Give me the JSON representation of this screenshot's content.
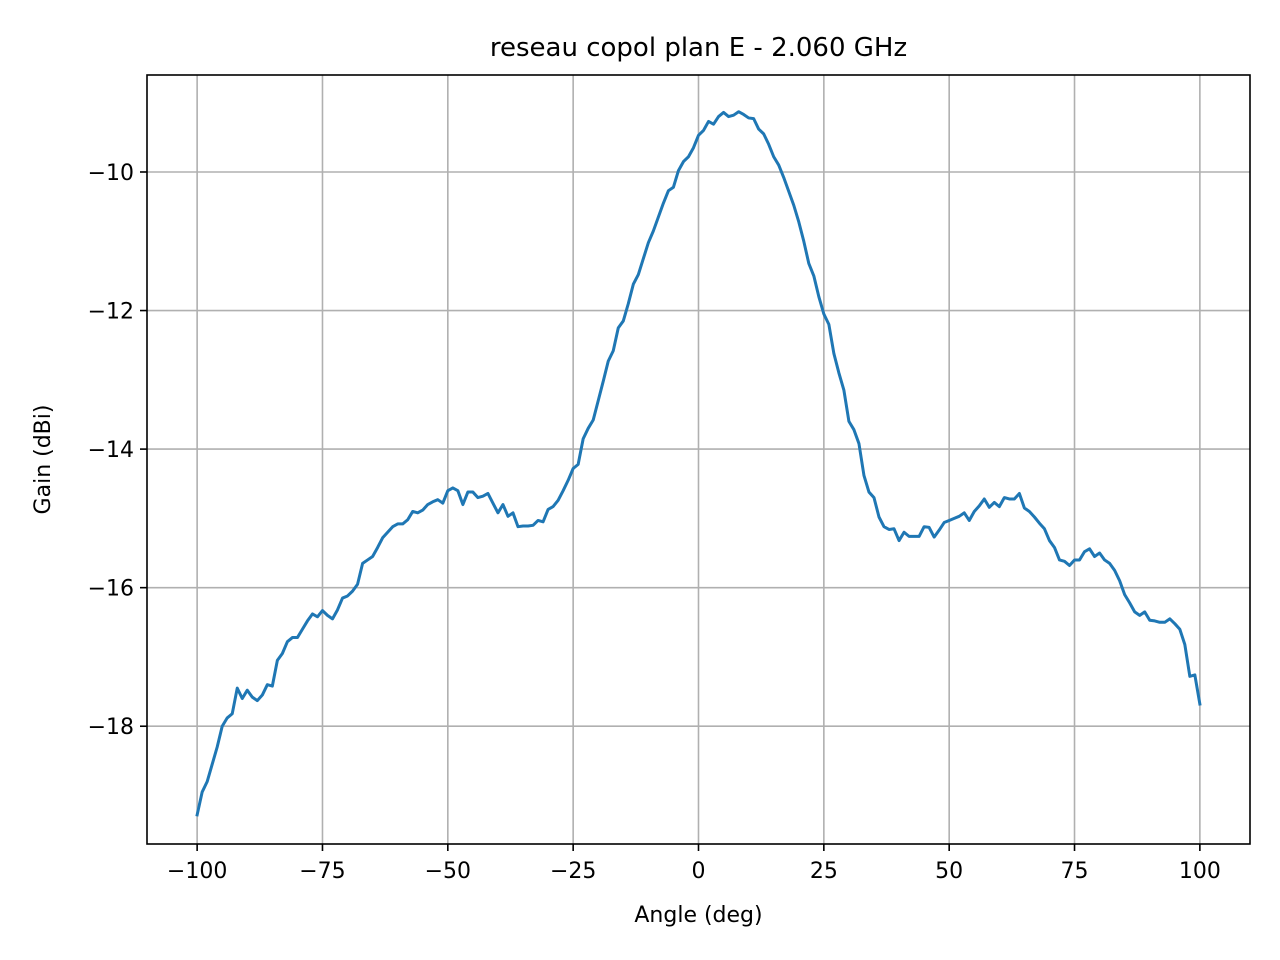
{
  "chart_data": {
    "type": "line",
    "title": "reseau copol plan E - 2.060 GHz",
    "xlabel": "Angle (deg)",
    "ylabel": "Gain (dBi)",
    "xlim": [
      -110,
      110
    ],
    "ylim": [
      -19.7,
      -8.6
    ],
    "xticks": [
      -100,
      -75,
      -50,
      -25,
      0,
      25,
      50,
      75,
      100
    ],
    "yticks": [
      -18,
      -16,
      -14,
      -12,
      -10
    ],
    "xtick_labels": [
      "−100",
      "−75",
      "−50",
      "−25",
      "0",
      "25",
      "50",
      "75",
      "100"
    ],
    "ytick_labels": [
      "−18",
      "−16",
      "−14",
      "−12",
      "−10"
    ],
    "grid": true,
    "line_color": "#1f77b4",
    "series": [
      {
        "x": [
          -100,
          -99,
          -98,
          -97,
          -96,
          -95,
          -94,
          -93,
          -92,
          -91,
          -90,
          -89,
          -88,
          -87,
          -86,
          -85,
          -84,
          -83,
          -82,
          -81,
          -80,
          -79,
          -78,
          -77,
          -76,
          -75,
          -74,
          -73,
          -72,
          -71,
          -70,
          -69,
          -68,
          -67,
          -66,
          -65,
          -64,
          -63,
          -62,
          -61,
          -60,
          -59,
          -58,
          -57,
          -56,
          -55,
          -54,
          -53,
          -52,
          -51,
          -50,
          -49,
          -48,
          -47,
          -46,
          -45,
          -44,
          -43,
          -42,
          -41,
          -40,
          -39,
          -38,
          -37,
          -36,
          -35,
          -34,
          -33,
          -32,
          -31,
          -30,
          -29,
          -28,
          -27,
          -26,
          -25,
          -24,
          -23,
          -22,
          -21,
          -20,
          -19,
          -18,
          -17,
          -16,
          -15,
          -14,
          -13,
          -12,
          -11,
          -10,
          -9,
          -8,
          -7,
          -6,
          -5,
          -4,
          -3,
          -2,
          -1,
          0,
          1,
          2,
          3,
          4,
          5,
          6,
          7,
          8,
          9,
          10,
          11,
          12,
          13,
          14,
          15,
          16,
          17,
          18,
          19,
          20,
          21,
          22,
          23,
          24,
          25,
          26,
          27,
          28,
          29,
          30,
          31,
          32,
          33,
          34,
          35,
          36,
          37,
          38,
          39,
          40,
          41,
          42,
          43,
          44,
          45,
          46,
          47,
          48,
          49,
          50,
          51,
          52,
          53,
          54,
          55,
          56,
          57,
          58,
          59,
          60,
          61,
          62,
          63,
          64,
          65,
          66,
          67,
          68,
          69,
          70,
          71,
          72,
          73,
          74,
          75,
          76,
          77,
          78,
          79,
          80,
          81,
          82,
          83,
          84,
          85,
          86,
          87,
          88,
          89,
          90,
          91,
          92,
          93,
          94,
          95,
          96,
          97,
          98,
          99,
          100
        ],
        "values": [
          -19.28,
          -18.95,
          -18.8,
          -18.55,
          -18.3,
          -18.0,
          -17.88,
          -17.82,
          -17.45,
          -17.6,
          -17.48,
          -17.58,
          -17.63,
          -17.55,
          -17.4,
          -17.42,
          -17.05,
          -16.95,
          -16.78,
          -16.72,
          -16.72,
          -16.6,
          -16.48,
          -16.38,
          -16.42,
          -16.33,
          -16.4,
          -16.45,
          -16.32,
          -16.15,
          -16.12,
          -16.05,
          -15.95,
          -15.65,
          -15.6,
          -15.55,
          -15.42,
          -15.28,
          -15.2,
          -15.12,
          -15.08,
          -15.08,
          -15.02,
          -14.9,
          -14.92,
          -14.88,
          -14.8,
          -14.76,
          -14.73,
          -14.78,
          -14.6,
          -14.56,
          -14.6,
          -14.8,
          -14.62,
          -14.62,
          -14.7,
          -14.68,
          -14.64,
          -14.78,
          -14.92,
          -14.8,
          -14.97,
          -14.92,
          -15.12,
          -15.11,
          -15.11,
          -15.1,
          -15.03,
          -15.05,
          -14.87,
          -14.83,
          -14.74,
          -14.6,
          -14.45,
          -14.28,
          -14.22,
          -13.85,
          -13.7,
          -13.58,
          -13.3,
          -13.02,
          -12.73,
          -12.58,
          -12.25,
          -12.15,
          -11.9,
          -11.62,
          -11.48,
          -11.25,
          -11.02,
          -10.85,
          -10.65,
          -10.45,
          -10.27,
          -10.22,
          -9.98,
          -9.85,
          -9.78,
          -9.65,
          -9.47,
          -9.4,
          -9.27,
          -9.31,
          -9.2,
          -9.14,
          -9.2,
          -9.18,
          -9.13,
          -9.17,
          -9.22,
          -9.23,
          -9.38,
          -9.45,
          -9.6,
          -9.78,
          -9.9,
          -10.08,
          -10.28,
          -10.48,
          -10.72,
          -11.0,
          -11.32,
          -11.5,
          -11.8,
          -12.05,
          -12.2,
          -12.62,
          -12.9,
          -13.15,
          -13.6,
          -13.72,
          -13.92,
          -14.38,
          -14.62,
          -14.7,
          -14.98,
          -15.12,
          -15.16,
          -15.15,
          -15.32,
          -15.2,
          -15.26,
          -15.26,
          -15.26,
          -15.12,
          -15.13,
          -15.27,
          -15.17,
          -15.06,
          -15.03,
          -15.0,
          -14.97,
          -14.92,
          -15.03,
          -14.9,
          -14.82,
          -14.72,
          -14.84,
          -14.77,
          -14.83,
          -14.7,
          -14.72,
          -14.72,
          -14.64,
          -14.85,
          -14.9,
          -14.98,
          -15.07,
          -15.15,
          -15.32,
          -15.42,
          -15.6,
          -15.62,
          -15.68,
          -15.6,
          -15.6,
          -15.48,
          -15.44,
          -15.55,
          -15.5,
          -15.6,
          -15.65,
          -15.75,
          -15.9,
          -16.1,
          -16.22,
          -16.35,
          -16.4,
          -16.35,
          -16.47,
          -16.48,
          -16.5,
          -16.5,
          -16.45,
          -16.52,
          -16.6,
          -16.82,
          -17.28,
          -17.26,
          -17.68
        ]
      }
    ]
  }
}
